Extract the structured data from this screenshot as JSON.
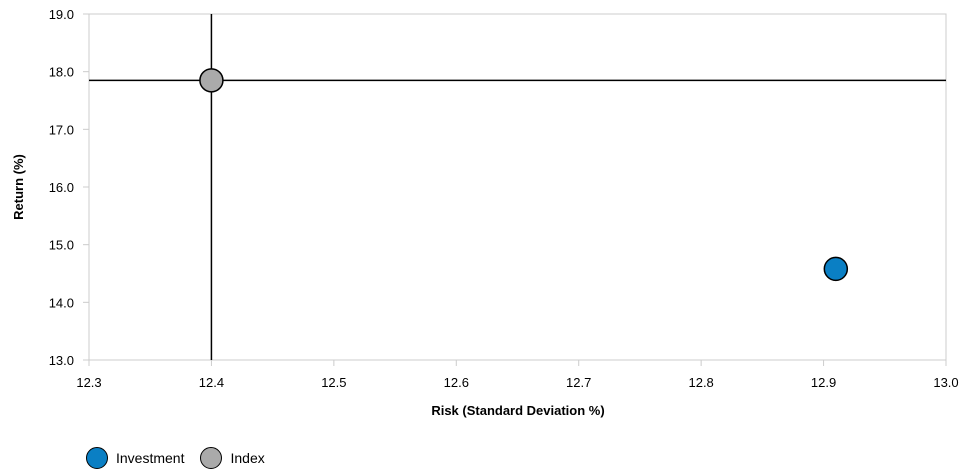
{
  "chart_data": {
    "type": "scatter",
    "title": "",
    "xlabel": "Risk (Standard Deviation %)",
    "ylabel": "Return (%)",
    "xlim": [
      12.3,
      13.0
    ],
    "ylim": [
      13.0,
      19.0
    ],
    "x_ticks": [
      "12.3",
      "12.4",
      "12.5",
      "12.6",
      "12.7",
      "12.8",
      "12.9",
      "13.0"
    ],
    "y_ticks": [
      "13.0",
      "14.0",
      "15.0",
      "16.0",
      "17.0",
      "18.0",
      "19.0"
    ],
    "grid": false,
    "legend_position": "bottom-left",
    "series": [
      {
        "name": "Investment",
        "color": "#0a7fc4",
        "points": [
          {
            "x": 12.91,
            "y": 14.58
          }
        ]
      },
      {
        "name": "Index",
        "color": "#aaaaaa",
        "points": [
          {
            "x": 12.4,
            "y": 17.85
          }
        ]
      }
    ],
    "crosshair": {
      "x": 12.4,
      "y": 17.85
    }
  }
}
